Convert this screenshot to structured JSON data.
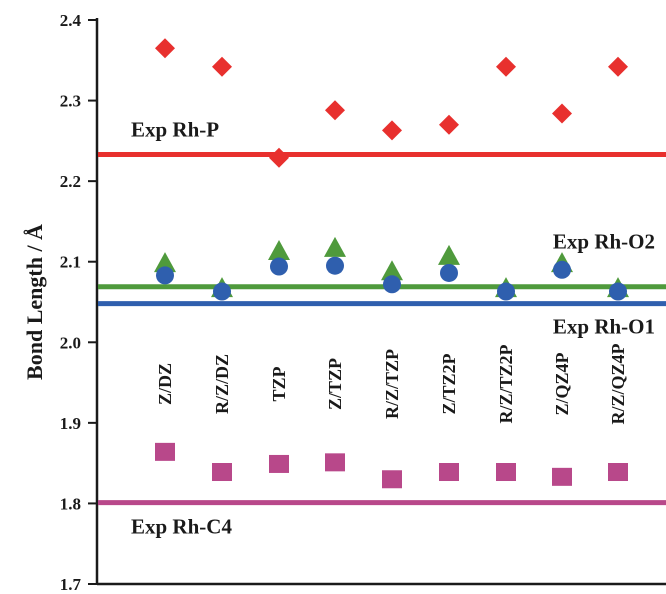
{
  "chart_data": {
    "type": "scatter",
    "ylabel": "Bond Length / Å",
    "ylim": [
      1.7,
      2.4
    ],
    "yticks": [
      "1.7",
      "1.8",
      "1.9",
      "2.0",
      "2.1",
      "2.2",
      "2.3",
      "2.4"
    ],
    "categories": [
      "Z/DZ",
      "R/Z/DZ",
      "TZP",
      "Z/TZP",
      "R/Z/TZP",
      "Z/TZ2P",
      "R/Z/TZ2P",
      "Z/QZ4P",
      "R/Z/QZ4P"
    ],
    "series": [
      {
        "marker": "diamond",
        "color": "#e8302e",
        "values": [
          2.365,
          2.342,
          2.229,
          2.288,
          2.263,
          2.27,
          2.342,
          2.284,
          2.342
        ]
      },
      {
        "marker": "triangle",
        "color": "#4f9a3c",
        "values": [
          2.097,
          2.066,
          2.112,
          2.116,
          2.087,
          2.106,
          2.066,
          2.097,
          2.066
        ]
      },
      {
        "marker": "circle",
        "color": "#2f5fae",
        "values": [
          2.083,
          2.063,
          2.094,
          2.095,
          2.072,
          2.086,
          2.063,
          2.09,
          2.063
        ]
      },
      {
        "marker": "square",
        "color": "#b8488a",
        "values": [
          1.864,
          1.839,
          1.849,
          1.851,
          1.83,
          1.839,
          1.839,
          1.833,
          1.839
        ]
      }
    ],
    "reference_lines": [
      {
        "label": "Exp Rh-P",
        "value": 2.233,
        "color": "#e8302e"
      },
      {
        "label": "Exp Rh-O2",
        "value": 2.069,
        "color": "#4f9a3c"
      },
      {
        "label": "Exp Rh-O1",
        "value": 2.048,
        "color": "#2f5fae"
      },
      {
        "label": "Exp Rh-C4",
        "value": 1.801,
        "color": "#b8488a"
      }
    ]
  }
}
